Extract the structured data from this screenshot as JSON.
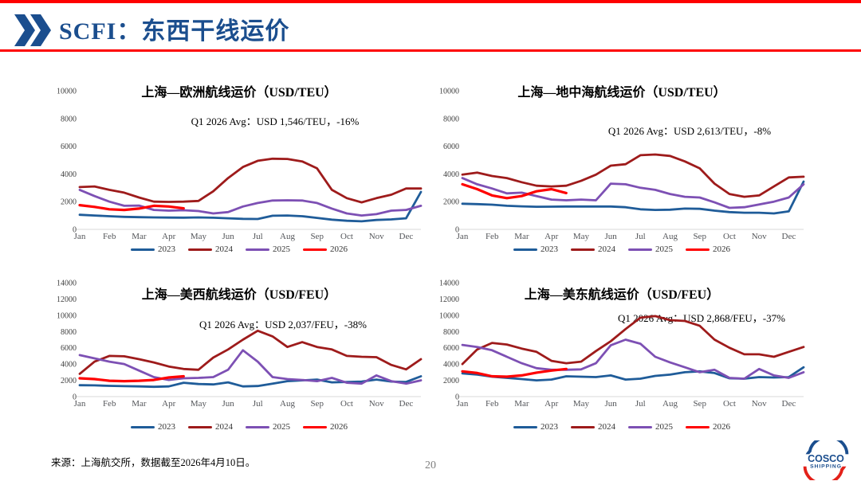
{
  "page": {
    "title": "SCFI：东西干线运价",
    "page_number": "20",
    "source_note": "来源：上海航交所，数据截至2026年4月10日。",
    "accent_blue": "#1b4e8e",
    "accent_red": "#fe0000"
  },
  "logo": {
    "line1": "COSCO",
    "line2": "SHIPPING"
  },
  "months": [
    "Jan",
    "Feb",
    "Mar",
    "Apr",
    "May",
    "Jun",
    "Jul",
    "Aug",
    "Sep",
    "Oct",
    "Nov",
    "Dec"
  ],
  "chart_data": [
    {
      "type": "line",
      "title": "上海—欧洲航线运价（USD/TEU）",
      "annotation": "Q1 2026 Avg：USD 1,546/TEU，-16%",
      "ylim": [
        0,
        10000
      ],
      "yticks": [
        0,
        2000,
        4000,
        6000,
        8000,
        10000
      ],
      "grid": false,
      "legend_position": "bottom",
      "series": [
        {
          "name": "2023",
          "color": "#1f5c99",
          "values": [
            1050,
            1000,
            950,
            900,
            880,
            860,
            850,
            845,
            860,
            840,
            800,
            760,
            745,
            980,
            1000,
            950,
            830,
            700,
            620,
            580,
            680,
            720,
            800,
            2700
          ]
        },
        {
          "name": "2024",
          "color": "#9e1b1b",
          "values": [
            3050,
            3100,
            2850,
            2650,
            2300,
            2000,
            1980,
            2000,
            2050,
            2750,
            3700,
            4500,
            4950,
            5100,
            5080,
            4900,
            4400,
            2850,
            2250,
            1950,
            2250,
            2500,
            2950,
            2950
          ]
        },
        {
          "name": "2025",
          "color": "#7d50b4",
          "values": [
            2850,
            2400,
            2000,
            1700,
            1720,
            1400,
            1350,
            1380,
            1320,
            1150,
            1250,
            1650,
            1900,
            2080,
            2100,
            2080,
            1900,
            1500,
            1150,
            1000,
            1100,
            1350,
            1400,
            1700
          ]
        },
        {
          "name": "2026",
          "color": "#ff0000",
          "values": [
            1750,
            1620,
            1450,
            1400,
            1500,
            1700,
            1650,
            1520,
            null,
            null,
            null,
            null,
            null,
            null,
            null,
            null,
            null,
            null,
            null,
            null,
            null,
            null,
            null,
            null
          ]
        }
      ]
    },
    {
      "type": "line",
      "title": "上海—地中海航线运价（USD/TEU）",
      "annotation": "Q1 2026 Avg：USD 2,613/TEU，-8%",
      "ylim": [
        0,
        10000
      ],
      "yticks": [
        0,
        2000,
        4000,
        6000,
        8000,
        10000
      ],
      "grid": false,
      "legend_position": "bottom",
      "series": [
        {
          "name": "2023",
          "color": "#1f5c99",
          "values": [
            1850,
            1820,
            1780,
            1700,
            1660,
            1630,
            1640,
            1650,
            1650,
            1650,
            1650,
            1600,
            1450,
            1400,
            1420,
            1500,
            1480,
            1350,
            1250,
            1200,
            1200,
            1150,
            1300,
            3450
          ]
        },
        {
          "name": "2024",
          "color": "#9e1b1b",
          "values": [
            3950,
            4100,
            3850,
            3700,
            3400,
            3150,
            3100,
            3150,
            3500,
            3950,
            4600,
            4700,
            5350,
            5400,
            5300,
            4900,
            4400,
            3300,
            2550,
            2350,
            2450,
            3100,
            3750,
            3800
          ]
        },
        {
          "name": "2025",
          "color": "#7d50b4",
          "values": [
            3700,
            3250,
            2950,
            2600,
            2650,
            2400,
            2150,
            2100,
            2150,
            2100,
            3300,
            3250,
            3000,
            2850,
            2550,
            2350,
            2300,
            1950,
            1550,
            1600,
            1800,
            2000,
            2300,
            3250
          ]
        },
        {
          "name": "2026",
          "color": "#ff0000",
          "values": [
            3250,
            2900,
            2450,
            2250,
            2400,
            2750,
            2900,
            2620,
            null,
            null,
            null,
            null,
            null,
            null,
            null,
            null,
            null,
            null,
            null,
            null,
            null,
            null,
            null,
            null
          ]
        }
      ]
    },
    {
      "type": "line",
      "title": "上海—美西航线运价（USD/FEU）",
      "annotation": "Q1 2026 Avg：USD 2,037/FEU，-38%",
      "ylim": [
        0,
        14000
      ],
      "yticks": [
        0,
        2000,
        4000,
        6000,
        8000,
        10000,
        12000,
        14000
      ],
      "grid": false,
      "legend_position": "bottom",
      "series": [
        {
          "name": "2023",
          "color": "#1f5c99",
          "values": [
            1400,
            1380,
            1320,
            1280,
            1250,
            1200,
            1250,
            1700,
            1550,
            1500,
            1750,
            1250,
            1300,
            1600,
            1900,
            2000,
            2100,
            1750,
            1800,
            1850,
            2100,
            1850,
            1800,
            2500
          ]
        },
        {
          "name": "2024",
          "color": "#9e1b1b",
          "values": [
            2800,
            4300,
            5000,
            4950,
            4600,
            4200,
            3700,
            3400,
            3300,
            4800,
            5800,
            7000,
            8100,
            7400,
            6100,
            6700,
            6100,
            5800,
            5000,
            4900,
            4850,
            3900,
            3350,
            4600
          ]
        },
        {
          "name": "2025",
          "color": "#7d50b4",
          "values": [
            5100,
            4700,
            4300,
            4000,
            3200,
            2400,
            2050,
            2250,
            2300,
            2400,
            3300,
            5700,
            4300,
            2400,
            2150,
            2050,
            1900,
            2300,
            1700,
            1600,
            2600,
            1900,
            1600,
            2000
          ]
        },
        {
          "name": "2026",
          "color": "#ff0000",
          "values": [
            2250,
            2150,
            1950,
            1900,
            1950,
            2050,
            2350,
            2500,
            null,
            null,
            null,
            null,
            null,
            null,
            null,
            null,
            null,
            null,
            null,
            null,
            null,
            null,
            null,
            null
          ]
        }
      ]
    },
    {
      "type": "line",
      "title": "上海—美东航线运价（USD/FEU）",
      "annotation": "Q1 2026 Avg：USD 2,868/FEU，-37%",
      "ylim": [
        0,
        14000
      ],
      "yticks": [
        0,
        2000,
        4000,
        6000,
        8000,
        10000,
        12000,
        14000
      ],
      "grid": false,
      "legend_position": "bottom",
      "series": [
        {
          "name": "2023",
          "color": "#1f5c99",
          "values": [
            2850,
            2700,
            2450,
            2300,
            2150,
            2000,
            2100,
            2500,
            2450,
            2400,
            2600,
            2100,
            2200,
            2550,
            2700,
            3000,
            3100,
            2900,
            2250,
            2200,
            2400,
            2350,
            2400,
            3600
          ]
        },
        {
          "name": "2024",
          "color": "#9e1b1b",
          "values": [
            4000,
            5800,
            6600,
            6400,
            5900,
            5500,
            4400,
            4100,
            4300,
            5600,
            6800,
            8300,
            9700,
            9900,
            9400,
            9300,
            8700,
            7000,
            6000,
            5200,
            5200,
            4900,
            5500,
            6100
          ]
        },
        {
          "name": "2025",
          "color": "#7d50b4",
          "values": [
            6350,
            6100,
            5700,
            4900,
            4100,
            3500,
            3300,
            3300,
            3350,
            4100,
            6300,
            7000,
            6500,
            4900,
            4200,
            3600,
            3000,
            3300,
            2300,
            2200,
            3400,
            2600,
            2300,
            3000
          ]
        },
        {
          "name": "2026",
          "color": "#ff0000",
          "values": [
            3100,
            2900,
            2500,
            2450,
            2600,
            2950,
            3200,
            3400,
            null,
            null,
            null,
            null,
            null,
            null,
            null,
            null,
            null,
            null,
            null,
            null,
            null,
            null,
            null,
            null
          ]
        }
      ]
    }
  ]
}
